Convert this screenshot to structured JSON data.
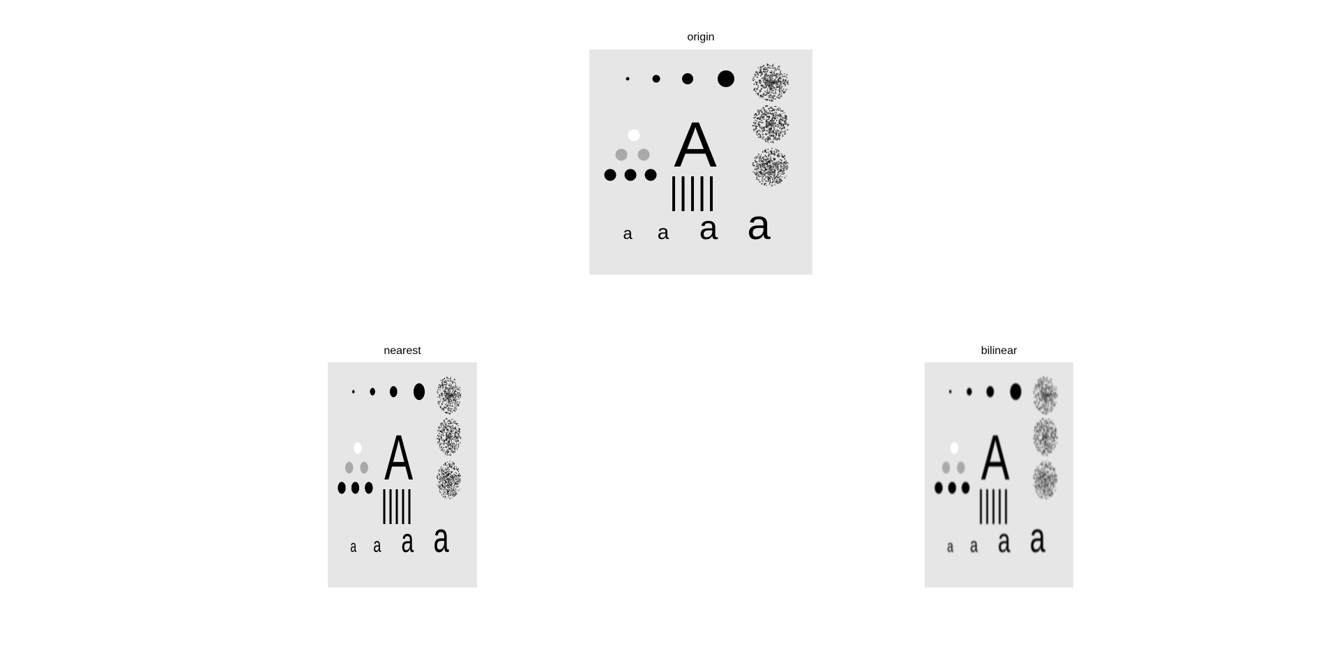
{
  "figure": {
    "background": "#ffffff",
    "panels": [
      {
        "id": "origin",
        "title": "origin",
        "style": "sharp"
      },
      {
        "id": "nearest",
        "title": "nearest",
        "style": "pixelated"
      },
      {
        "id": "bilinear",
        "title": "bilinear",
        "style": "blurred"
      }
    ]
  },
  "test_pattern": {
    "background_gray": "#e6e6e6",
    "ink_color": "#000000",
    "light_dot_color": "#ffffff",
    "mid_dot_color": "#a9a9a9",
    "big_letter": "A",
    "small_letter": "a",
    "small_letter_count": 4,
    "vertical_bar_count": 5,
    "top_dot_count": 4,
    "noise_patch_count": 3
  }
}
